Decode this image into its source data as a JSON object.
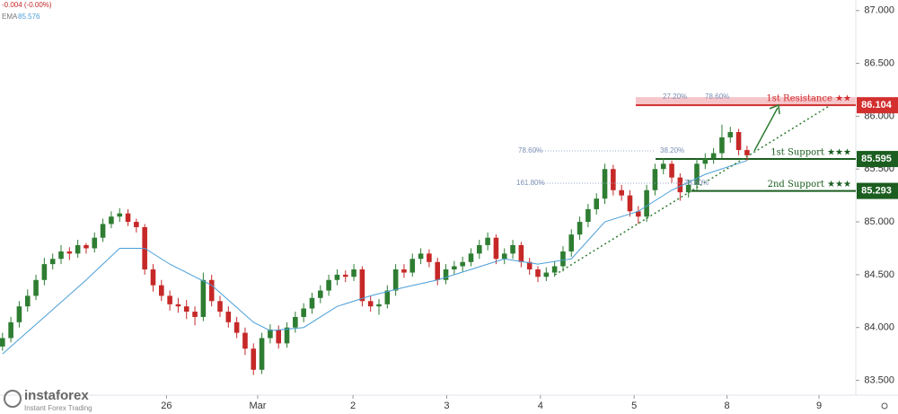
{
  "chart_data": {
    "type": "candlestick",
    "header": {
      "change": "-0.004 (-0.00%)",
      "ema_label": "EMA",
      "ema_value": 85.576
    },
    "ylim": [
      83.36,
      87.1
    ],
    "yticks": [
      {
        "value": 83.5,
        "label": "83.500"
      },
      {
        "value": 84.0,
        "label": "84.000"
      },
      {
        "value": 84.5,
        "label": "84.500"
      },
      {
        "value": 85.0,
        "label": "85.000"
      },
      {
        "value": 85.5,
        "label": "85.500"
      },
      {
        "value": 86.0,
        "label": "86.000"
      },
      {
        "value": 86.5,
        "label": "86.500"
      },
      {
        "value": 87.0,
        "label": "87.000"
      }
    ],
    "xlim": [
      -0.3,
      102
    ],
    "xticks": [
      {
        "value": 19.6,
        "label": "26"
      },
      {
        "value": 30.5,
        "label": "Mar"
      },
      {
        "value": 41.9,
        "label": "2"
      },
      {
        "value": 53.1,
        "label": "3"
      },
      {
        "value": 64.3,
        "label": "4"
      },
      {
        "value": 75.5,
        "label": "5"
      },
      {
        "value": 86.6,
        "label": "8"
      },
      {
        "value": 97.6,
        "label": "9"
      }
    ],
    "up_color": "#2e7d32",
    "down_color": "#c62828",
    "candles": [
      [
        83.82,
        83.95,
        83.78,
        83.9
      ],
      [
        83.9,
        84.1,
        83.86,
        84.05
      ],
      [
        84.05,
        84.25,
        84.0,
        84.2
      ],
      [
        84.2,
        84.36,
        84.15,
        84.3
      ],
      [
        84.3,
        84.5,
        84.26,
        84.45
      ],
      [
        84.45,
        84.66,
        84.4,
        84.6
      ],
      [
        84.6,
        84.7,
        84.55,
        84.65
      ],
      [
        84.65,
        84.78,
        84.6,
        84.72
      ],
      [
        84.72,
        84.76,
        84.64,
        84.7
      ],
      [
        84.7,
        84.83,
        84.66,
        84.78
      ],
      [
        84.78,
        84.8,
        84.7,
        84.75
      ],
      [
        84.75,
        84.9,
        84.71,
        84.85
      ],
      [
        84.85,
        85.03,
        84.81,
        84.98
      ],
      [
        84.98,
        85.1,
        84.94,
        85.05
      ],
      [
        85.05,
        85.13,
        85.0,
        85.08
      ],
      [
        85.08,
        85.12,
        84.96,
        85.0
      ],
      [
        85.0,
        85.03,
        84.9,
        84.95
      ],
      [
        84.95,
        84.98,
        84.5,
        84.55
      ],
      [
        84.55,
        84.6,
        84.34,
        84.4
      ],
      [
        84.4,
        84.45,
        84.25,
        84.3
      ],
      [
        84.3,
        84.35,
        84.16,
        84.22
      ],
      [
        84.22,
        84.28,
        84.14,
        84.2
      ],
      [
        84.2,
        84.26,
        84.08,
        84.15
      ],
      [
        84.15,
        84.2,
        84.02,
        84.1
      ],
      [
        84.1,
        84.52,
        84.06,
        84.45
      ],
      [
        84.45,
        84.5,
        84.2,
        84.25
      ],
      [
        84.25,
        84.3,
        84.1,
        84.15
      ],
      [
        84.15,
        84.2,
        84.0,
        84.05
      ],
      [
        84.05,
        84.1,
        83.9,
        83.95
      ],
      [
        83.95,
        84.0,
        83.74,
        83.8
      ],
      [
        83.8,
        83.85,
        83.55,
        83.6
      ],
      [
        83.6,
        83.95,
        83.56,
        83.9
      ],
      [
        83.9,
        84.03,
        83.85,
        83.98
      ],
      [
        83.98,
        84.02,
        83.8,
        83.85
      ],
      [
        83.85,
        84.05,
        83.81,
        84.0
      ],
      [
        84.0,
        84.15,
        83.95,
        84.1
      ],
      [
        84.1,
        84.23,
        84.05,
        84.18
      ],
      [
        84.18,
        84.33,
        84.13,
        84.28
      ],
      [
        84.28,
        84.4,
        84.23,
        84.35
      ],
      [
        84.35,
        84.5,
        84.3,
        84.45
      ],
      [
        84.45,
        84.55,
        84.4,
        84.5
      ],
      [
        84.5,
        84.54,
        84.43,
        84.48
      ],
      [
        84.48,
        84.6,
        84.44,
        84.55
      ],
      [
        84.55,
        84.58,
        84.2,
        84.25
      ],
      [
        84.25,
        84.3,
        84.15,
        84.2
      ],
      [
        84.2,
        84.27,
        84.12,
        84.22
      ],
      [
        84.22,
        84.4,
        84.18,
        84.35
      ],
      [
        84.35,
        84.6,
        84.3,
        84.55
      ],
      [
        84.55,
        84.6,
        84.47,
        84.52
      ],
      [
        84.52,
        84.7,
        84.48,
        84.65
      ],
      [
        84.65,
        84.75,
        84.6,
        84.7
      ],
      [
        84.7,
        84.74,
        84.57,
        84.62
      ],
      [
        84.62,
        84.66,
        84.4,
        84.45
      ],
      [
        84.45,
        84.6,
        84.41,
        84.55
      ],
      [
        84.55,
        84.63,
        84.5,
        84.58
      ],
      [
        84.58,
        84.67,
        84.53,
        84.62
      ],
      [
        84.62,
        84.75,
        84.58,
        84.7
      ],
      [
        84.7,
        84.83,
        84.65,
        84.78
      ],
      [
        84.78,
        84.9,
        84.73,
        84.85
      ],
      [
        84.85,
        84.88,
        84.6,
        84.65
      ],
      [
        84.65,
        84.75,
        84.6,
        84.7
      ],
      [
        84.7,
        84.83,
        84.65,
        84.78
      ],
      [
        84.78,
        84.81,
        84.57,
        84.62
      ],
      [
        84.62,
        84.66,
        84.5,
        84.55
      ],
      [
        84.55,
        84.58,
        84.43,
        84.48
      ],
      [
        84.48,
        84.57,
        84.44,
        84.52
      ],
      [
        84.52,
        84.63,
        84.48,
        84.58
      ],
      [
        84.58,
        84.77,
        84.53,
        84.72
      ],
      [
        84.72,
        84.93,
        84.67,
        84.88
      ],
      [
        84.88,
        85.05,
        84.83,
        85.0
      ],
      [
        85.0,
        85.17,
        84.95,
        85.12
      ],
      [
        85.12,
        85.27,
        85.07,
        85.22
      ],
      [
        85.22,
        85.55,
        85.17,
        85.5
      ],
      [
        85.5,
        85.54,
        85.25,
        85.3
      ],
      [
        85.3,
        85.35,
        85.2,
        85.25
      ],
      [
        85.25,
        85.3,
        85.05,
        85.1
      ],
      [
        85.1,
        85.15,
        84.98,
        85.05
      ],
      [
        85.05,
        85.35,
        85.0,
        85.3
      ],
      [
        85.3,
        85.55,
        85.25,
        85.5
      ],
      [
        85.5,
        85.6,
        85.45,
        85.55
      ],
      [
        85.55,
        85.58,
        85.37,
        85.42
      ],
      [
        85.42,
        85.46,
        85.2,
        85.28
      ],
      [
        85.28,
        85.4,
        85.23,
        85.35
      ],
      [
        85.35,
        85.6,
        85.3,
        85.55
      ],
      [
        85.55,
        85.65,
        85.5,
        85.6
      ],
      [
        85.6,
        85.7,
        85.55,
        85.65
      ],
      [
        85.65,
        85.92,
        85.6,
        85.8
      ],
      [
        85.8,
        85.9,
        85.75,
        85.85
      ],
      [
        85.85,
        85.88,
        85.63,
        85.68
      ],
      [
        85.68,
        85.72,
        85.58,
        85.63
      ]
    ],
    "ema": {
      "color": "#4a9fd8",
      "x": [
        0,
        5,
        10,
        14,
        17,
        20,
        25,
        30,
        32,
        36,
        40,
        44,
        48,
        52,
        56,
        60,
        64,
        68,
        72,
        76,
        80,
        84,
        89
      ],
      "values": [
        83.75,
        84.1,
        84.45,
        84.75,
        84.75,
        84.6,
        84.4,
        84.05,
        83.97,
        84.0,
        84.2,
        84.3,
        84.38,
        84.45,
        84.55,
        84.65,
        84.6,
        84.65,
        85.0,
        85.1,
        85.3,
        85.45,
        85.58
      ]
    },
    "levels": [
      {
        "name": "1st Resistance ★★",
        "value": 86.104,
        "color": "#d32f2f"
      },
      {
        "name": "1st Support ★★★",
        "value": 85.595,
        "color": "#1b5e20"
      },
      {
        "name": "2nd Support ★★★",
        "value": 85.293,
        "color": "#1b5e20"
      }
    ],
    "fib_labels": [
      "78.60%",
      "38.20%",
      "161.80%",
      "78.60%",
      "27.20%",
      "78.60%"
    ],
    "logo": {
      "name": "instaforex",
      "tagline": "Instant Forex Trading"
    }
  }
}
